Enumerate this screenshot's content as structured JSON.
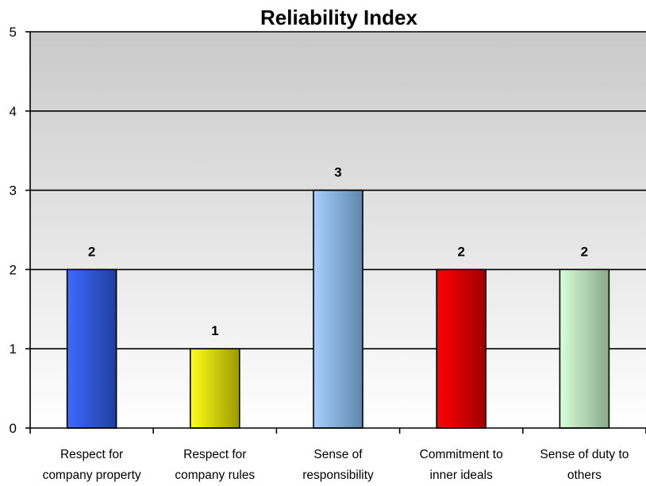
{
  "chart_data": {
    "type": "bar",
    "title": "Reliability Index",
    "xlabel": "",
    "ylabel": "",
    "ylim": [
      0,
      5
    ],
    "yticks": [
      0,
      1,
      2,
      3,
      4,
      5
    ],
    "grid": true,
    "legend": "none",
    "categories": [
      [
        "Respect for",
        "company property"
      ],
      [
        "Respect for",
        "company rules"
      ],
      [
        "Sense of",
        "responsibility"
      ],
      [
        "Commitment to",
        "inner ideals"
      ],
      [
        "Sense of duty to",
        "others"
      ]
    ],
    "values": [
      2,
      1,
      3,
      2,
      2
    ],
    "data_labels": [
      "2",
      "1",
      "3",
      "2",
      "2"
    ],
    "colors": [
      [
        "#3d6bff",
        "#1f3f9e"
      ],
      [
        "#ffff1a",
        "#9a9a00"
      ],
      [
        "#a8d0ff",
        "#5f86aa"
      ],
      [
        "#ff0000",
        "#9e0000"
      ],
      [
        "#d8ffd8",
        "#8aaa8a"
      ]
    ],
    "background_gradient": [
      "#c9c9c9",
      "#ffffff"
    ]
  }
}
